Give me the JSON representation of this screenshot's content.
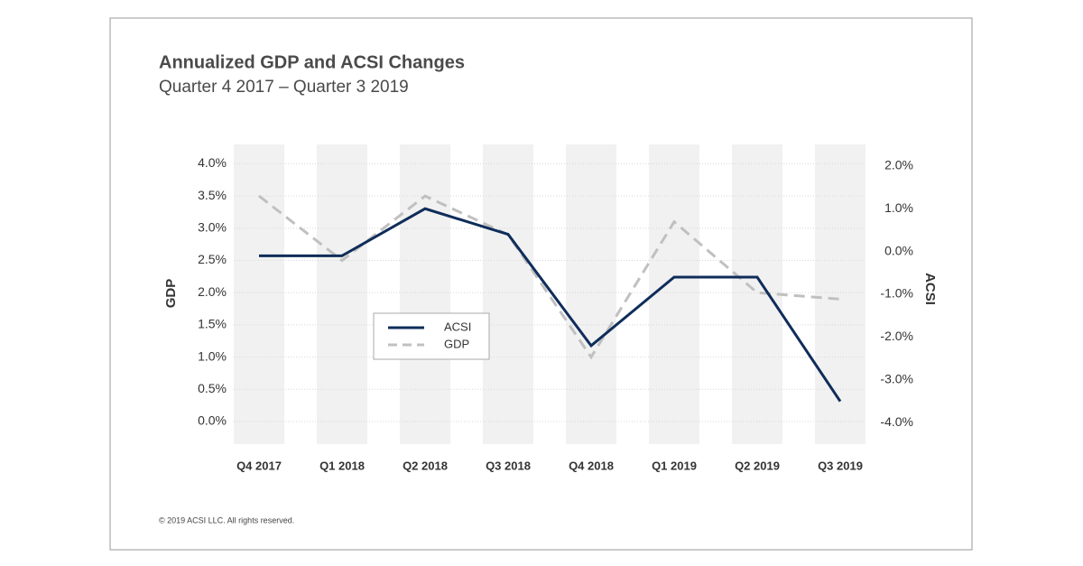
{
  "chart_data": {
    "type": "line",
    "title": "Annualized GDP and ACSI Changes",
    "subtitle": "Quarter 4 2017 – Quarter 3 2019",
    "ylabel": "GDP",
    "y2label": "ACSI",
    "footer": "© 2019 ACSI LLC. All rights reserved.",
    "categories": [
      "Q4 2017",
      "Q1 2018",
      "Q2 2018",
      "Q3 2018",
      "Q4 2018",
      "Q1 2019",
      "Q2 2019",
      "Q3 2019"
    ],
    "series": [
      {
        "name": "ACSI",
        "color": "#0f2d5a",
        "linestyle": "solid",
        "axis": "y2",
        "values": [
          -0.1,
          -0.1,
          1.0,
          0.4,
          -2.2,
          -0.6,
          -0.6,
          -3.5
        ]
      },
      {
        "name": "GDP",
        "color": "#c0c0c0",
        "linestyle": "dashed",
        "values": [
          3.5,
          2.5,
          3.5,
          2.9,
          1.0,
          3.1,
          2.0,
          1.9
        ]
      }
    ],
    "ylim": [
      -0.35,
      4.3
    ],
    "yticks": [
      {
        "value": 0,
        "label": "0.0%"
      },
      {
        "value": 0.5,
        "label": "0.5%"
      },
      {
        "value": 1,
        "label": "1.0%"
      },
      {
        "value": 1.5,
        "label": "1.5%"
      },
      {
        "value": 2,
        "label": "2.0%"
      },
      {
        "value": 2.5,
        "label": "2.5%"
      },
      {
        "value": 3,
        "label": "3.0%"
      },
      {
        "value": 3.5,
        "label": "3.5%"
      },
      {
        "value": 4,
        "label": "4.0%"
      }
    ],
    "y2lim": [
      -4.5,
      2.5
    ],
    "y2ticks": [
      {
        "value": -4,
        "label": "-4.0%"
      },
      {
        "value": -3,
        "label": "-3.0%"
      },
      {
        "value": -2,
        "label": "-2.0%"
      },
      {
        "value": -1,
        "label": "-1.0%"
      },
      {
        "value": 0,
        "label": "0.0%"
      },
      {
        "value": 1,
        "label": "1.0%"
      },
      {
        "value": 2,
        "label": "2.0%"
      }
    ],
    "grid": true
  }
}
